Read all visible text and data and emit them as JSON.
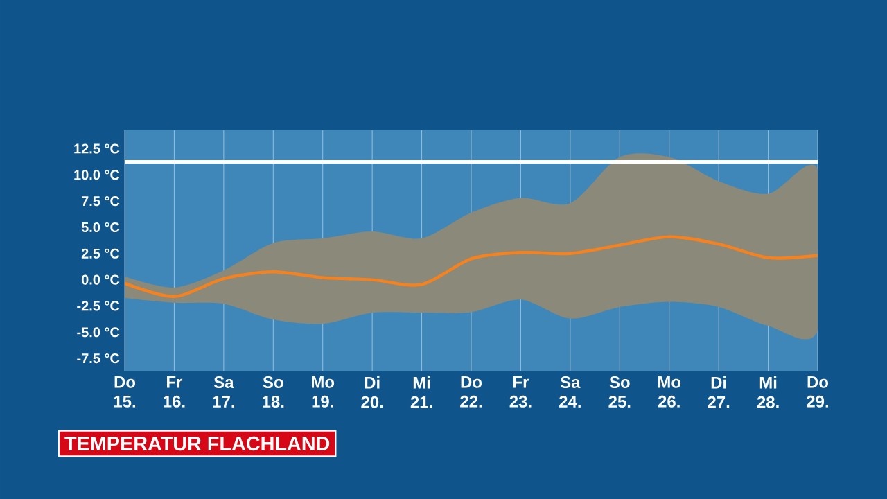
{
  "chart_data": {
    "type": "line",
    "title": "TEMPERATUR FLACHLAND",
    "categories": [
      "Do 15.",
      "Fr 16.",
      "Sa 17.",
      "So 18.",
      "Mo 19.",
      "Di 20.",
      "Mi 21.",
      "Do 22.",
      "Fr 23.",
      "Sa 24.",
      "So 25.",
      "Mo 26.",
      "Di 27.",
      "Mi 28.",
      "Do 29."
    ],
    "series": [
      {
        "color": "#f58220",
        "values": [
          -0.35,
          -1.6,
          0.1,
          0.75,
          0.2,
          0.0,
          -0.45,
          2.0,
          2.6,
          2.5,
          3.3,
          4.1,
          3.4,
          2.1,
          2.3
        ],
        "upper": [
          0.3,
          -0.75,
          0.9,
          3.5,
          3.95,
          4.6,
          3.95,
          6.4,
          7.8,
          7.3,
          11.7,
          11.7,
          9.4,
          8.2,
          10.5
        ],
        "lower": [
          -1.75,
          -2.2,
          -2.3,
          -3.8,
          -4.2,
          -3.15,
          -3.15,
          -3.1,
          -1.9,
          -3.7,
          -2.6,
          -2.1,
          -2.6,
          -4.4,
          -4.8
        ]
      }
    ],
    "ylim": [
      -8.75,
      14.25
    ],
    "yticks": [
      {
        "value": -7.5,
        "label": "-7.5 °C"
      },
      {
        "value": -5,
        "label": "-5.0 °C"
      },
      {
        "value": -2.5,
        "label": "-2.5 °C"
      },
      {
        "value": 0,
        "label": "0.0 °C"
      },
      {
        "value": 2.5,
        "label": "2.5 °C"
      },
      {
        "value": 5,
        "label": "5.0 °C"
      },
      {
        "value": 7.5,
        "label": "7.5 °C"
      },
      {
        "value": 10,
        "label": "10.0 °C"
      },
      {
        "value": 12.5,
        "label": "12.5 °C"
      }
    ],
    "ref_lines": [
      {
        "axis": "y",
        "value": 11.25,
        "color": "#ffffff"
      }
    ],
    "grid": "x"
  }
}
